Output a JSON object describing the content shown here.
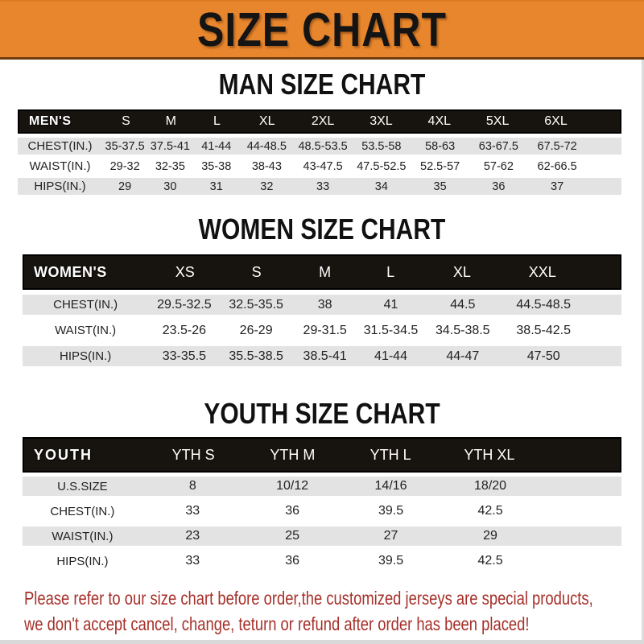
{
  "banner": {
    "title": "SIZE CHART"
  },
  "colors": {
    "banner_bg": "#E8862D",
    "table_header_bg": "#17130F",
    "row_gray": "#E3E3E3",
    "footer_red": "#A6302A"
  },
  "sections": [
    {
      "title": "MAN SIZE CHART",
      "corner_label": "MEN'S",
      "columns": [
        "S",
        "M",
        "L",
        "XL",
        "2XL",
        "3XL",
        "4XL",
        "5XL",
        "6XL"
      ],
      "rows": [
        {
          "label": "CHEST(IN.)",
          "values": [
            "35-37.5",
            "37.5-41",
            "41-44",
            "44-48.5",
            "48.5-53.5",
            "53.5-58",
            "58-63",
            "63-67.5",
            "67.5-72"
          ]
        },
        {
          "label": "WAIST(IN.)",
          "values": [
            "29-32",
            "32-35",
            "35-38",
            "38-43",
            "43-47.5",
            "47.5-52.5",
            "52.5-57",
            "57-62",
            "62-66.5"
          ]
        },
        {
          "label": "HIPS(IN.)",
          "values": [
            "29",
            "30",
            "31",
            "32",
            "33",
            "34",
            "35",
            "36",
            "37"
          ]
        }
      ]
    },
    {
      "title": "WOMEN SIZE CHART",
      "corner_label": "WOMEN'S",
      "columns": [
        "XS",
        "S",
        "M",
        "L",
        "XL",
        "XXL"
      ],
      "rows": [
        {
          "label": "CHEST(IN.)",
          "values": [
            "29.5-32.5",
            "32.5-35.5",
            "38",
            "41",
            "44.5",
            "44.5-48.5"
          ]
        },
        {
          "label": "WAIST(IN.)",
          "values": [
            "23.5-26",
            "26-29",
            "29-31.5",
            "31.5-34.5",
            "34.5-38.5",
            "38.5-42.5"
          ]
        },
        {
          "label": "HIPS(IN.)",
          "values": [
            "33-35.5",
            "35.5-38.5",
            "38.5-41",
            "41-44",
            "44-47",
            "47-50"
          ]
        }
      ]
    },
    {
      "title": "YOUTH SIZE CHART",
      "corner_label": "YOUTH",
      "columns": [
        "YTH S",
        "YTH M",
        "YTH L",
        "YTH XL"
      ],
      "rows": [
        {
          "label": "U.S.SIZE",
          "values": [
            "8",
            "10/12",
            "14/16",
            "18/20"
          ]
        },
        {
          "label": "CHEST(IN.)",
          "values": [
            "33",
            "36",
            "39.5",
            "42.5"
          ]
        },
        {
          "label": "WAIST(IN.)",
          "values": [
            "23",
            "25",
            "27",
            "29"
          ]
        },
        {
          "label": "HIPS(IN.)",
          "values": [
            "33",
            "36",
            "39.5",
            "42.5"
          ]
        }
      ]
    }
  ],
  "footer": {
    "line1": "Please refer to our size chart before order,the customized jerseys are special products,",
    "line2": "we don't accept cancel, change, teturn or refund after order has been placed!"
  }
}
